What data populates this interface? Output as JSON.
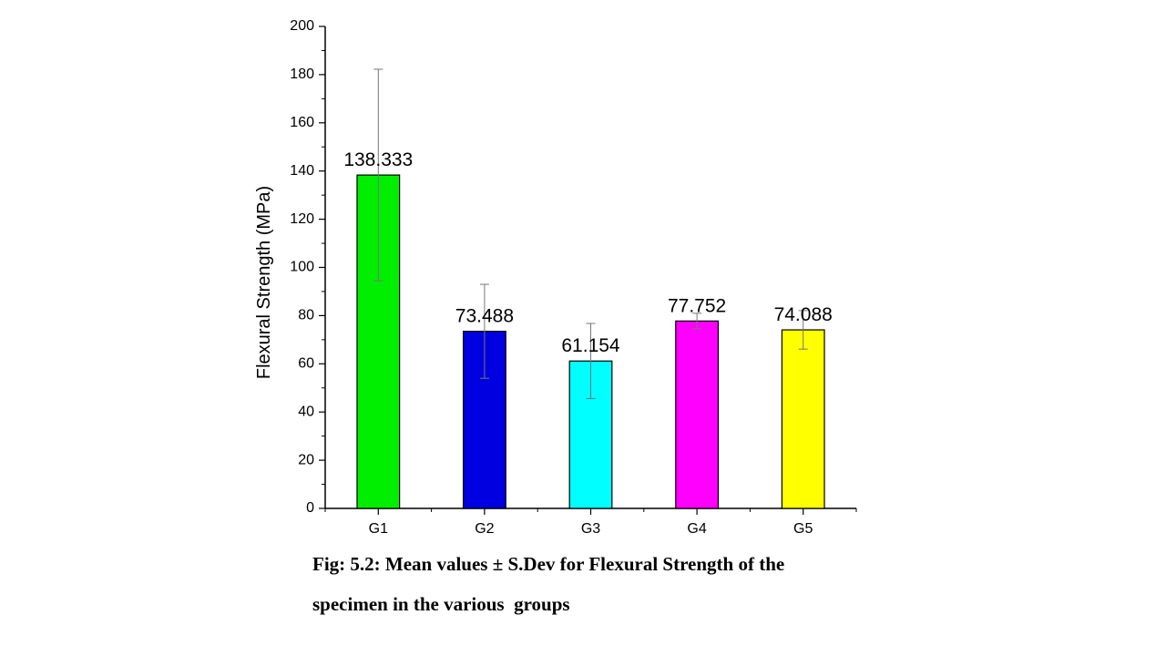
{
  "chart_data": {
    "type": "bar",
    "y_label": "Flexural Strength (MPa)",
    "categories": [
      "G1",
      "G2",
      "G3",
      "G4",
      "G5"
    ],
    "values": [
      138.333,
      73.488,
      61.154,
      77.752,
      74.088
    ],
    "errors": [
      43.9,
      19.5,
      15.6,
      3.2,
      8.0
    ],
    "colors": [
      "#00ee00",
      "#0000e0",
      "#00ffff",
      "#ff00ff",
      "#ffff00"
    ],
    "ylim": [
      0,
      200
    ],
    "yticks": [
      0,
      20,
      40,
      60,
      80,
      100,
      120,
      140,
      160,
      180,
      200
    ],
    "caption": [
      "Fig: 5.2: Mean values ± S.Dev for Flexural Strength of the",
      "specimen in the various  groups"
    ]
  }
}
